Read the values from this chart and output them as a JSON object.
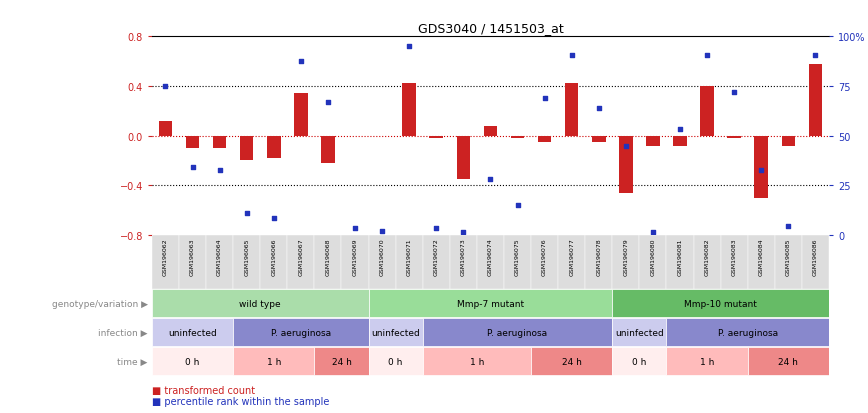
{
  "title": "GDS3040 / 1451503_at",
  "samples": [
    "GSM196062",
    "GSM196063",
    "GSM196064",
    "GSM196065",
    "GSM196066",
    "GSM196067",
    "GSM196068",
    "GSM196069",
    "GSM196070",
    "GSM196071",
    "GSM196072",
    "GSM196073",
    "GSM196074",
    "GSM196075",
    "GSM196076",
    "GSM196077",
    "GSM196078",
    "GSM196079",
    "GSM196080",
    "GSM196081",
    "GSM196082",
    "GSM196083",
    "GSM196084",
    "GSM196085",
    "GSM196086"
  ],
  "bar_values": [
    0.12,
    -0.1,
    -0.1,
    -0.2,
    -0.18,
    0.34,
    -0.22,
    0.0,
    0.0,
    0.42,
    -0.02,
    -0.35,
    0.08,
    -0.02,
    -0.05,
    0.42,
    -0.05,
    -0.46,
    -0.08,
    -0.08,
    0.4,
    -0.02,
    -0.5,
    -0.08,
    0.58
  ],
  "dot_values": [
    0.4,
    -0.25,
    -0.28,
    -0.62,
    -0.66,
    0.6,
    0.27,
    -0.74,
    -0.77,
    0.72,
    -0.74,
    -0.78,
    -0.35,
    -0.56,
    0.3,
    0.65,
    0.22,
    -0.08,
    -0.78,
    0.05,
    0.65,
    0.35,
    -0.28,
    -0.73,
    0.65
  ],
  "ylim": [
    -0.8,
    0.8
  ],
  "yticks": [
    -0.8,
    -0.4,
    0.0,
    0.4,
    0.8
  ],
  "right_yticks_labels": [
    "0",
    "25",
    "50",
    "75",
    "100%"
  ],
  "right_ytick_positions": [
    -0.8,
    -0.4,
    0.0,
    0.4,
    0.8
  ],
  "hlines": [
    0.4,
    0.0,
    -0.4
  ],
  "bar_color": "#CC2222",
  "dot_color": "#2233BB",
  "zero_line_color": "#CC0000",
  "hline_color": "black",
  "genotype_groups": [
    {
      "label": "wild type",
      "start": 0,
      "end": 8,
      "color": "#AADDAA"
    },
    {
      "label": "Mmp-7 mutant",
      "start": 8,
      "end": 17,
      "color": "#99DD99"
    },
    {
      "label": "Mmp-10 mutant",
      "start": 17,
      "end": 25,
      "color": "#66BB66"
    }
  ],
  "infection_groups": [
    {
      "label": "uninfected",
      "start": 0,
      "end": 3,
      "color": "#CCCCEE"
    },
    {
      "label": "P. aeruginosa",
      "start": 3,
      "end": 8,
      "color": "#8888CC"
    },
    {
      "label": "uninfected",
      "start": 8,
      "end": 10,
      "color": "#CCCCEE"
    },
    {
      "label": "P. aeruginosa",
      "start": 10,
      "end": 17,
      "color": "#8888CC"
    },
    {
      "label": "uninfected",
      "start": 17,
      "end": 19,
      "color": "#CCCCEE"
    },
    {
      "label": "P. aeruginosa",
      "start": 19,
      "end": 25,
      "color": "#8888CC"
    }
  ],
  "time_groups": [
    {
      "label": "0 h",
      "start": 0,
      "end": 3,
      "color": "#FFEEEE"
    },
    {
      "label": "1 h",
      "start": 3,
      "end": 6,
      "color": "#FFBBBB"
    },
    {
      "label": "24 h",
      "start": 6,
      "end": 8,
      "color": "#EE8888"
    },
    {
      "label": "0 h",
      "start": 8,
      "end": 10,
      "color": "#FFEEEE"
    },
    {
      "label": "1 h",
      "start": 10,
      "end": 14,
      "color": "#FFBBBB"
    },
    {
      "label": "24 h",
      "start": 14,
      "end": 17,
      "color": "#EE8888"
    },
    {
      "label": "0 h",
      "start": 17,
      "end": 19,
      "color": "#FFEEEE"
    },
    {
      "label": "1 h",
      "start": 19,
      "end": 22,
      "color": "#FFBBBB"
    },
    {
      "label": "24 h",
      "start": 22,
      "end": 25,
      "color": "#EE8888"
    }
  ],
  "row_labels": [
    "genotype/variation",
    "infection",
    "time"
  ],
  "legend_items": [
    "transformed count",
    "percentile rank within the sample"
  ],
  "legend_colors": [
    "#CC2222",
    "#2233BB"
  ]
}
